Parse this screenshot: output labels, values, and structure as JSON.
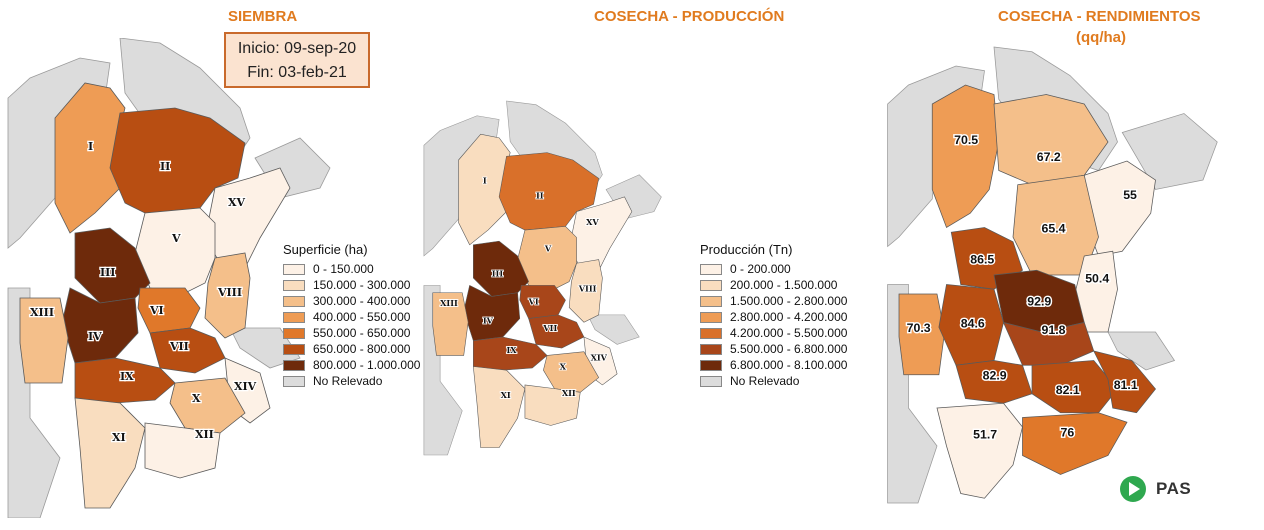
{
  "panels": [
    {
      "title_line1": "SIEMBRA",
      "title_line2": "",
      "legend_title": "Superficie (ha)",
      "legend": [
        {
          "label": "0 - 150.000",
          "color": "#FDF1E6"
        },
        {
          "label": "150.000 - 300.000",
          "color": "#F9DDBF"
        },
        {
          "label": "300.000 - 400.000",
          "color": "#F4BF8A"
        },
        {
          "label": "400.000 - 550.000",
          "color": "#EE9C55"
        },
        {
          "label": "550.000 - 650.000",
          "color": "#E0782A"
        },
        {
          "label": "650.000 - 800.000",
          "color": "#B84E12"
        },
        {
          "label": "800.000 - 1.000.000",
          "color": "#6E2A0B"
        },
        {
          "label": "No Relevado",
          "color": "#DCDCDC"
        }
      ],
      "regions": [
        "I",
        "II",
        "III",
        "IV",
        "V",
        "VI",
        "VII",
        "VIII",
        "IX",
        "X",
        "XI",
        "XII",
        "XIII",
        "XIV",
        "XV"
      ]
    },
    {
      "title_line1": "COSECHA - PRODUCCIÓN",
      "title_line2": "",
      "legend_title": "Producción (Tn)",
      "legend": [
        {
          "label": "0 - 200.000",
          "color": "#FDF1E6"
        },
        {
          "label": "200.000 - 1.500.000",
          "color": "#F9DDBF"
        },
        {
          "label": "1.500.000 - 2.800.000",
          "color": "#F4BF8A"
        },
        {
          "label": "2.800.000 - 4.200.000",
          "color": "#EE9C55"
        },
        {
          "label": "4.200.000 - 5.500.000",
          "color": "#D9702A"
        },
        {
          "label": "5.500.000 - 6.800.000",
          "color": "#A8461A"
        },
        {
          "label": "6.800.000 - 8.100.000",
          "color": "#6E2A0B"
        },
        {
          "label": "No Relevado",
          "color": "#DCDCDC"
        }
      ],
      "regions": [
        "I",
        "II",
        "III",
        "IV",
        "V",
        "VI",
        "VII",
        "VIII",
        "IX",
        "X",
        "XI",
        "XII",
        "XIII",
        "XIV",
        "XV"
      ]
    },
    {
      "title_line1": "COSECHA - RENDIMIENTOS",
      "title_line2": "(qq/ha)",
      "yields": [
        "70.5",
        "67.2",
        "55",
        "65.4",
        "86.5",
        "50.4",
        "92.9",
        "70.3",
        "84.6",
        "91.8",
        "82.9",
        "82.1",
        "81.1",
        "76",
        "51.7"
      ]
    }
  ],
  "date_box": {
    "start": "Inicio: 09-sep-20",
    "end": "Fin: 03-feb-21"
  },
  "logo_text": "PAS",
  "colors": {
    "title": "#E07B1F",
    "no_data": "#DCDCDC",
    "border": "#555555",
    "logo_green": "#2FA84F"
  }
}
